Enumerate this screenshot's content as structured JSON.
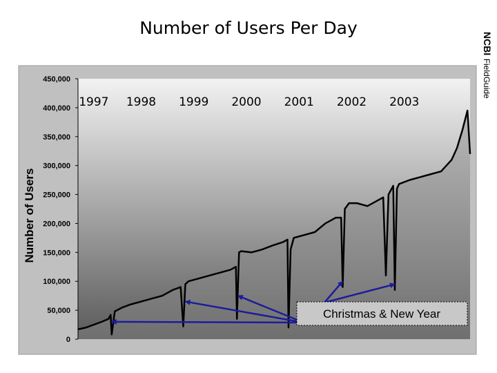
{
  "slide": {
    "title": "Number of Users Per Day",
    "side_label_brand": "NCBI",
    "side_label_product": "FieldGuide"
  },
  "colors": {
    "panel": "#c0c0c0",
    "plot_top": "#f2f2f2",
    "plot_bottom": "#5a5a5a",
    "data_line": "#000000",
    "arrow": "#1c1c9c"
  },
  "chart_data": {
    "type": "area",
    "title": "Number of Users Per Day",
    "ylabel": "Number of Users",
    "xlabel": "",
    "ylim": [
      0,
      450000
    ],
    "yticks": [
      0,
      50000,
      100000,
      150000,
      200000,
      250000,
      300000,
      350000,
      400000,
      450000
    ],
    "ytick_labels": [
      "0",
      "50,000",
      "100,000",
      "150,000",
      "200,000",
      "250,000",
      "300,000",
      "350,000",
      "400,000",
      "450,000"
    ],
    "xlim": [
      1997.0,
      2004.45
    ],
    "year_labels": [
      {
        "label": "1997",
        "at": 1997.3
      },
      {
        "label": "1998",
        "at": 1998.2
      },
      {
        "label": "1999",
        "at": 1999.2
      },
      {
        "label": "2000",
        "at": 2000.2
      },
      {
        "label": "2001",
        "at": 2001.2
      },
      {
        "label": "2002",
        "at": 2002.2
      },
      {
        "label": "2003",
        "at": 2003.2
      }
    ],
    "series": [
      {
        "name": "Users per day",
        "x": [
          1997.0,
          1997.15,
          1997.3,
          1997.45,
          1997.58,
          1997.62,
          1997.64,
          1997.7,
          1997.85,
          1998.0,
          1998.2,
          1998.4,
          1998.6,
          1998.8,
          1998.95,
          1999.0,
          1999.04,
          1999.1,
          1999.3,
          1999.5,
          1999.7,
          1999.9,
          2000.0,
          2000.02,
          2000.06,
          2000.1,
          2000.3,
          2000.5,
          2000.7,
          2000.9,
          2000.98,
          2001.0,
          2001.04,
          2001.1,
          2001.3,
          2001.5,
          2001.7,
          2001.9,
          2002.0,
          2002.03,
          2002.07,
          2002.15,
          2002.3,
          2002.5,
          2002.7,
          2002.8,
          2002.85,
          2002.9,
          2002.99,
          2003.02,
          2003.06,
          2003.1,
          2003.3,
          2003.5,
          2003.7,
          2003.9,
          2004.0,
          2004.1,
          2004.2,
          2004.3,
          2004.4,
          2004.45
        ],
        "y": [
          17000,
          20000,
          25000,
          30000,
          35000,
          42000,
          8000,
          48000,
          55000,
          60000,
          65000,
          70000,
          75000,
          85000,
          90000,
          22000,
          95000,
          100000,
          105000,
          110000,
          115000,
          120000,
          125000,
          35000,
          150000,
          152000,
          150000,
          155000,
          162000,
          168000,
          172000,
          20000,
          155000,
          175000,
          180000,
          185000,
          200000,
          210000,
          210000,
          90000,
          225000,
          235000,
          235000,
          230000,
          240000,
          245000,
          110000,
          250000,
          265000,
          85000,
          260000,
          268000,
          275000,
          280000,
          285000,
          290000,
          300000,
          310000,
          330000,
          360000,
          395000,
          320000
        ]
      }
    ],
    "annotation": {
      "text": "Christmas & New Year",
      "arrow_targets": [
        {
          "x": 1997.64,
          "y": 30000
        },
        {
          "x": 1999.04,
          "y": 65000
        },
        {
          "x": 2000.04,
          "y": 75000
        },
        {
          "x": 2002.03,
          "y": 100000
        },
        {
          "x": 2003.02,
          "y": 95000
        }
      ]
    },
    "legend": "none",
    "grid": false
  }
}
